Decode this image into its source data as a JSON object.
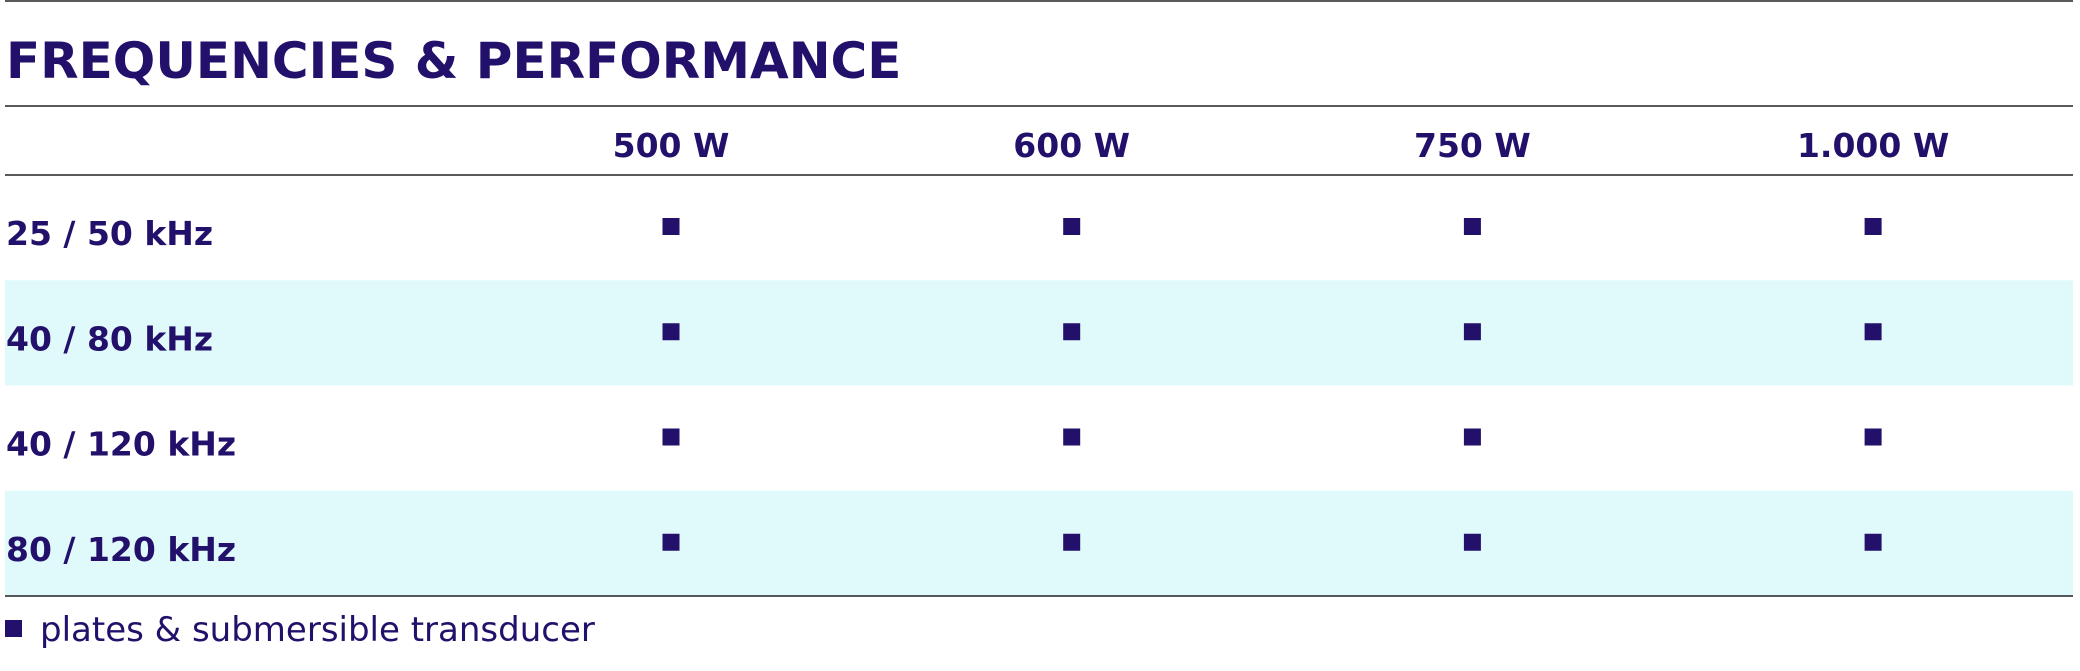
{
  "header": {
    "title": "FREQUENCIES & PERFORMANCE"
  },
  "table": {
    "columns": [
      "500 W",
      "600 W",
      "750 W",
      "1.000 W"
    ],
    "rows": [
      "25 / 50 kHz",
      "40 / 80 kHz",
      "40 / 120 kHz",
      "80 / 120 kHz"
    ]
  },
  "legend": {
    "label": "plates & submersible transducer"
  }
}
